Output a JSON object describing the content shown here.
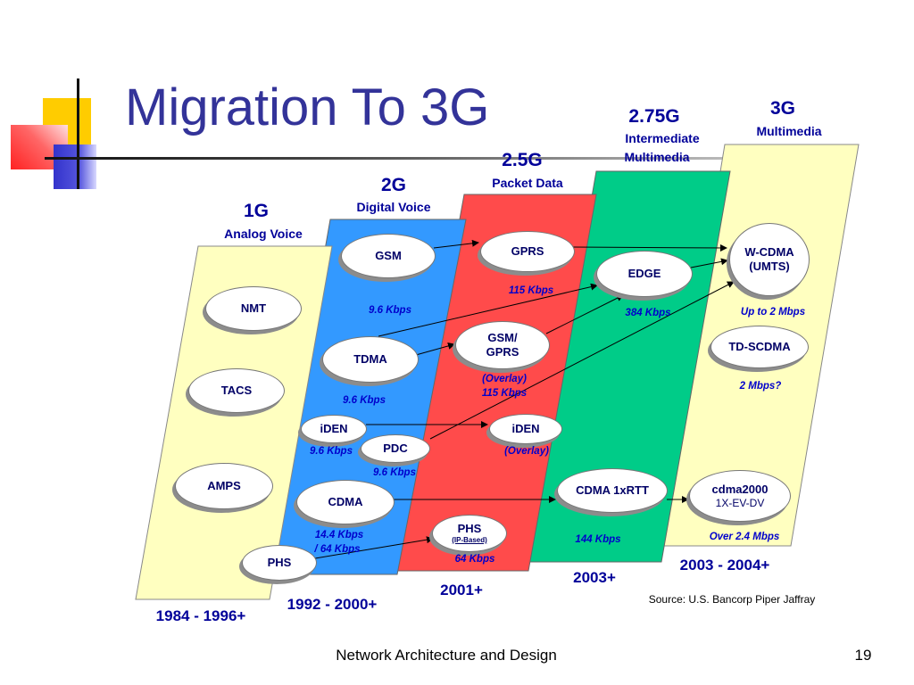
{
  "slide": {
    "title": "Migration To 3G",
    "source": "Source: U.S. Bancorp Piper Jaffray",
    "footer": "Network Architecture and Design",
    "page_number": "19"
  },
  "colors": {
    "title": "#333399",
    "panel_1g": "#FFFFC0",
    "panel_2g": "#3399FF",
    "panel_25g": "#FF4B4B",
    "panel_275g": "#00CC88",
    "panel_3g": "#FFFFC0",
    "label": "#000099",
    "rate": "#0000CC"
  },
  "generations": [
    {
      "name": "1G",
      "subtitle": "Analog Voice",
      "years": "1984 - 1996+"
    },
    {
      "name": "2G",
      "subtitle": "Digital Voice",
      "years": "1992 - 2000+"
    },
    {
      "name": "2.5G",
      "subtitle": "Packet Data",
      "years": "2001+"
    },
    {
      "name": "2.75G",
      "subtitle": "Intermediate",
      "subtitle2": "Multimedia",
      "years": "2003+"
    },
    {
      "name": "3G",
      "subtitle": "Multimedia",
      "years": "2003 - 2004+"
    }
  ],
  "technologies": {
    "nmt": "NMT",
    "tacs": "TACS",
    "amps": "AMPS",
    "phs_1g": "PHS",
    "gsm": "GSM",
    "tdma": "TDMA",
    "iden_2g": "iDEN",
    "pdc": "PDC",
    "cdma": "CDMA",
    "gprs": "GPRS",
    "gsm_gprs": [
      "GSM/",
      "GPRS"
    ],
    "iden_overlay": "iDEN",
    "phs_ip": "PHS",
    "phs_ip_note": "(IP-Based)",
    "edge": "EDGE",
    "cdma_1xrtt": "CDMA 1xRTT",
    "wcdma": [
      "W-CDMA",
      "(UMTS)"
    ],
    "td_scdma": "TD-SCDMA",
    "cdma2000": [
      "cdma2000",
      "1X-EV-DV"
    ]
  },
  "rates": {
    "gsm": "9.6 Kbps",
    "tdma": "9.6 Kbps",
    "iden": "9.6 Kbps",
    "pdc": "9.6 Kbps",
    "cdma": [
      "14.4 Kbps",
      "/ 64 Kbps"
    ],
    "gprs": "115 Kbps",
    "gsm_gprs": [
      "(Overlay)",
      "115 Kbps"
    ],
    "iden_overlay": "(Overlay)",
    "phs_ip": "64 Kbps",
    "edge": "384 Kbps",
    "cdma_1xrtt": "144 Kbps",
    "wcdma": "Up to 2 Mbps",
    "td_scdma": "2 Mbps?",
    "cdma2000": "Over 2.4 Mbps"
  }
}
